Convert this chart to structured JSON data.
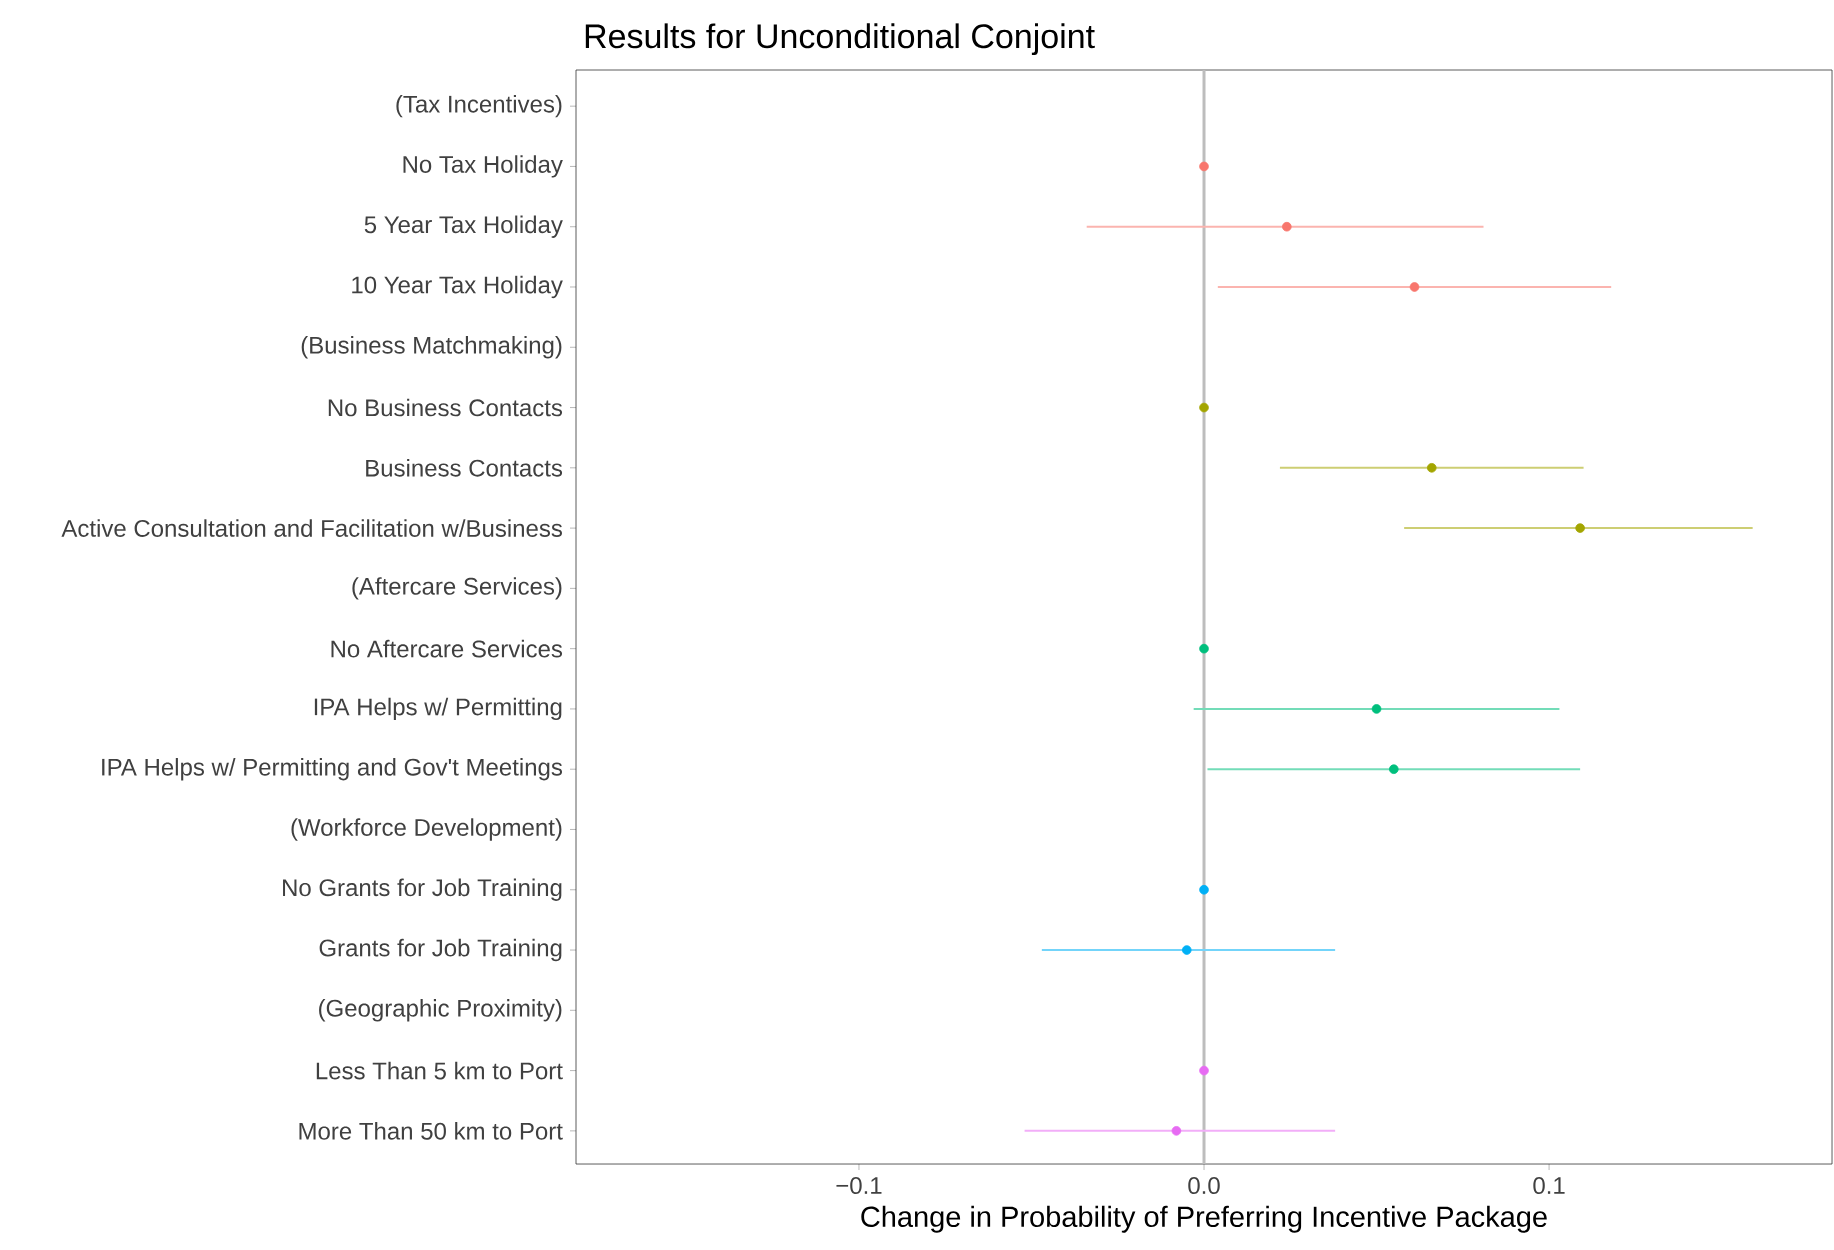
{
  "chart_data": {
    "type": "scatter",
    "orientation": "horizontal",
    "title": "Results for Unconditional Conjoint",
    "xlabel": "Change in Probability of Preferring Incentive Package",
    "categories": [
      "(Tax Incentives)",
      "No Tax Holiday",
      "5 Year Tax Holiday",
      "10 Year Tax Holiday",
      "(Business Matchmaking)",
      "No Business Contacts",
      "Business Contacts",
      "Active Consultation and Facilitation w/Business",
      "(Aftercare Services)",
      "No Aftercare Services",
      "IPA Helps w/ Permitting",
      "IPA Helps w/ Permitting and Gov't Meetings",
      "(Workforce Development)",
      "No Grants for Job Training",
      "Grants for Job Training",
      "(Geographic Proximity)",
      "Less Than 5 km to Port",
      "More Than 50 km to Port"
    ],
    "series": [
      {
        "color": "#f8766d",
        "values": [
          null,
          0,
          0.024,
          0.061,
          null,
          null,
          null,
          null,
          null,
          null,
          null,
          null,
          null,
          null,
          null,
          null,
          null,
          null
        ],
        "errors": [
          null,
          null,
          [
            -0.034,
            0.081
          ],
          [
            0.004,
            0.118
          ],
          null,
          null,
          null,
          null,
          null,
          null,
          null,
          null,
          null,
          null,
          null,
          null,
          null,
          null
        ]
      },
      {
        "color": "#a3a500",
        "values": [
          null,
          null,
          null,
          null,
          null,
          0,
          0.066,
          0.109,
          null,
          null,
          null,
          null,
          null,
          null,
          null,
          null,
          null,
          null
        ],
        "errors": [
          null,
          null,
          null,
          null,
          null,
          null,
          [
            0.022,
            0.11
          ],
          [
            0.058,
            0.159
          ],
          null,
          null,
          null,
          null,
          null,
          null,
          null,
          null,
          null,
          null
        ]
      },
      {
        "color": "#00bf7d",
        "values": [
          null,
          null,
          null,
          null,
          null,
          null,
          null,
          null,
          null,
          0,
          0.05,
          0.055,
          null,
          null,
          null,
          null,
          null,
          null
        ],
        "errors": [
          null,
          null,
          null,
          null,
          null,
          null,
          null,
          null,
          null,
          null,
          [
            -0.003,
            0.103
          ],
          [
            0.001,
            0.109
          ],
          null,
          null,
          null,
          null,
          null,
          null
        ]
      },
      {
        "color": "#00b0f6",
        "values": [
          null,
          null,
          null,
          null,
          null,
          null,
          null,
          null,
          null,
          null,
          null,
          null,
          null,
          0,
          -0.005,
          null,
          null,
          null
        ],
        "errors": [
          null,
          null,
          null,
          null,
          null,
          null,
          null,
          null,
          null,
          null,
          null,
          null,
          null,
          null,
          [
            -0.047,
            0.038
          ],
          null,
          null,
          null
        ]
      },
      {
        "color": "#e76bf3",
        "values": [
          null,
          null,
          null,
          null,
          null,
          null,
          null,
          null,
          null,
          null,
          null,
          null,
          null,
          null,
          null,
          null,
          0,
          -0.008
        ],
        "errors": [
          null,
          null,
          null,
          null,
          null,
          null,
          null,
          null,
          null,
          null,
          null,
          null,
          null,
          null,
          null,
          null,
          null,
          [
            -0.052,
            0.038
          ]
        ]
      }
    ],
    "xlim": [
      -0.182,
      0.182
    ],
    "xticks": [
      {
        "value": -0.1,
        "label": "−0.1"
      },
      {
        "value": 0,
        "label": "0.0"
      },
      {
        "value": 0.1,
        "label": "0.1"
      }
    ],
    "ref_lines": [
      {
        "axis": "x",
        "value": 0,
        "color": "#bdbdbd"
      }
    ],
    "grid": false
  }
}
